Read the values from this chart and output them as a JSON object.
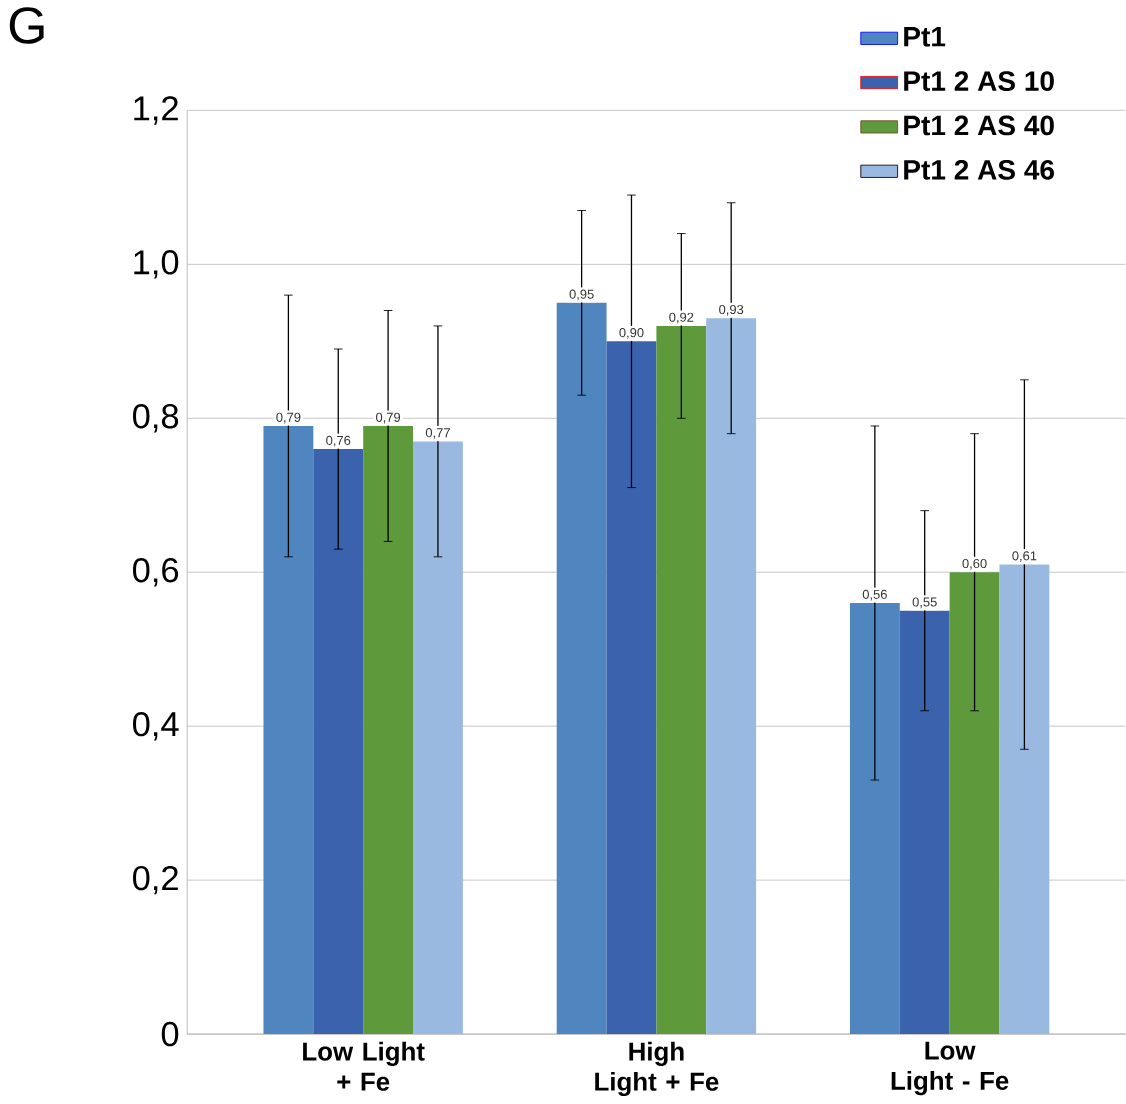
{
  "chart_data": {
    "type": "bar",
    "annotations": [
      "G"
    ],
    "categories": [
      "Low Light + Fe",
      "High Light + Fe",
      "Low Light - Fe"
    ],
    "series": [
      {
        "name": "Pt1",
        "color": "#4f86c0",
        "values": [
          0.79,
          0.95,
          0.56
        ],
        "errors": [
          0.17,
          0.12,
          0.23
        ],
        "value_labels": [
          "0,79",
          "0,95",
          "0,56"
        ]
      },
      {
        "name": "Pt1 2 AS 10",
        "color": "#3a62ad",
        "values": [
          0.76,
          0.9,
          0.55
        ],
        "errors": [
          0.13,
          0.19,
          0.13
        ],
        "value_labels": [
          "0,76",
          "0,90",
          "0,55"
        ]
      },
      {
        "name": "Pt1 2 AS 40",
        "color": "#5e9a3c",
        "values": [
          0.79,
          0.92,
          0.6
        ],
        "errors": [
          0.15,
          0.12,
          0.18
        ],
        "value_labels": [
          "0,79",
          "0,92",
          "0,60"
        ]
      },
      {
        "name": "Pt1 2 AS 46",
        "color": "#9ab9e0",
        "values": [
          0.77,
          0.93,
          0.61
        ],
        "errors": [
          0.15,
          0.15,
          0.24
        ],
        "value_labels": [
          "0,77",
          "0,93",
          "0,61"
        ]
      }
    ],
    "ylim": [
      0,
      1.2
    ],
    "yticks": [
      {
        "value": 0,
        "label": "0"
      },
      {
        "value": 0.2,
        "label": "0,2"
      },
      {
        "value": 0.4,
        "label": "0,4"
      },
      {
        "value": 0.6,
        "label": "0,6"
      },
      {
        "value": 0.8,
        "label": "0,8"
      },
      {
        "value": 1.0,
        "label": "1,0"
      },
      {
        "value": 1.2,
        "label": "1,2"
      }
    ],
    "grid": "y",
    "legend": "top right"
  }
}
